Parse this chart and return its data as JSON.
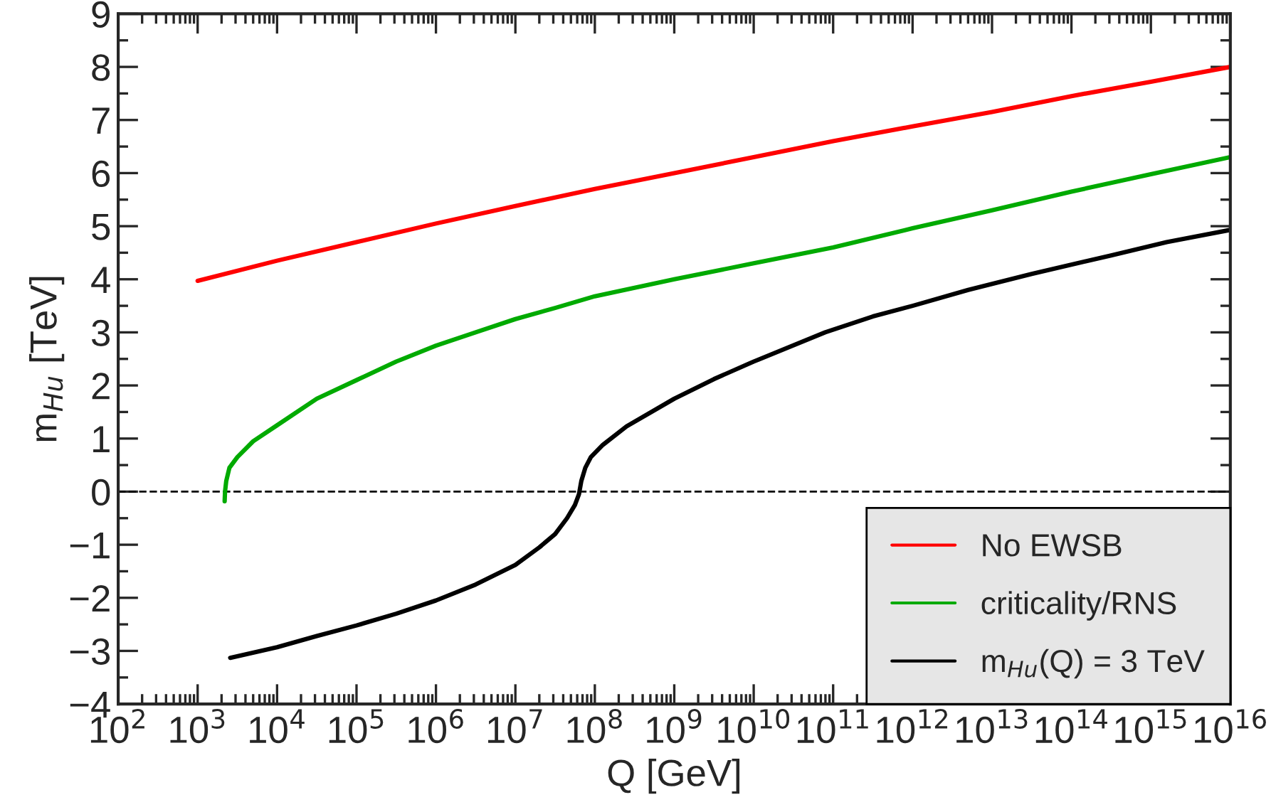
{
  "chart_data": {
    "type": "line",
    "xlabel": "Q [GeV]",
    "ylabel": "m$_{Hu}$ [TeV]",
    "log": "x",
    "xlim": [
      100,
      1e+16
    ],
    "xticks": [
      {
        "value": 100.0,
        "label": "10$^{2}$"
      },
      {
        "value": 1000.0,
        "label": "10$^{3}$"
      },
      {
        "value": 10000.0,
        "label": "10$^{4}$"
      },
      {
        "value": 100000.0,
        "label": "10$^{5}$"
      },
      {
        "value": 1000000.0,
        "label": "10$^{6}$"
      },
      {
        "value": 10000000.0,
        "label": "10$^{7}$"
      },
      {
        "value": 100000000.0,
        "label": "10$^{8}$"
      },
      {
        "value": 1000000000.0,
        "label": "10$^{9}$"
      },
      {
        "value": 10000000000.0,
        "label": "10$^{10}$"
      },
      {
        "value": 100000000000.0,
        "label": "10$^{11}$"
      },
      {
        "value": 1000000000000.0,
        "label": "10$^{12}$"
      },
      {
        "value": 10000000000000.0,
        "label": "10$^{13}$"
      },
      {
        "value": 100000000000000.0,
        "label": "10$^{14}$"
      },
      {
        "value": 1000000000000000.0,
        "label": "10$^{15}$"
      },
      {
        "value": 1e+16,
        "label": "10$^{16}$"
      }
    ],
    "ylim": [
      -4,
      9
    ],
    "yticks": [
      {
        "value": -4,
        "label": "−4"
      },
      {
        "value": -3,
        "label": "−3"
      },
      {
        "value": -2,
        "label": "−2"
      },
      {
        "value": -1,
        "label": "−1"
      },
      0,
      1,
      2,
      3,
      4,
      5,
      6,
      7,
      8,
      9
    ],
    "grid": false,
    "legend": "bottom right",
    "marker": "none",
    "line_style": "solid",
    "ref_lines": [
      {
        "axis": "y",
        "value": 0,
        "color": "#000000",
        "line_style": "dashed"
      }
    ],
    "series": [
      {
        "name": "No EWSB",
        "color": "#ff0000",
        "x": [
          1000.0,
          10000.0,
          100000.0,
          1000000.0,
          10000000.0,
          100000000.0,
          1000000000.0,
          10000000000.0,
          100000000000.0,
          1000000000000.0,
          10000000000000.0,
          100000000000000.0,
          1000000000000000.0,
          1e+16
        ],
        "values": [
          3.97,
          4.35,
          4.7,
          5.05,
          5.38,
          5.7,
          6.0,
          6.3,
          6.6,
          6.88,
          7.15,
          7.45,
          7.72,
          8.0
        ]
      },
      {
        "name": "criticality/RNS",
        "color": "#00aa00",
        "x": [
          2188,
          2213,
          2291,
          2512,
          3162,
          5012,
          10000.0,
          31620,
          100000.0,
          316200,
          1000000.0,
          3162000.0,
          10000000.0,
          31620000.0,
          100000000.0,
          1000000000.0,
          10000000000.0,
          100000000000.0,
          1000000000000.0,
          10000000000000.0,
          100000000000000.0,
          1000000000000000.0,
          1e+16
        ],
        "values": [
          -0.18,
          0.0,
          0.2,
          0.45,
          0.65,
          0.95,
          1.25,
          1.75,
          2.1,
          2.45,
          2.75,
          3.0,
          3.25,
          3.46,
          3.68,
          4.0,
          4.3,
          4.6,
          4.96,
          5.3,
          5.65,
          5.98,
          6.3
        ]
      },
      {
        "name": "m$_{Hu}$(Q) = 3 TeV",
        "color": "#000000",
        "x": [
          2570,
          10000.0,
          31620,
          100000.0,
          316200,
          1000000.0,
          3162000.0,
          10000000.0,
          20000000.0,
          31620000.0,
          44700000.0,
          56200000.0,
          63100000.0,
          67600000.0,
          75900000.0,
          89100000.0,
          126000000.0,
          251000000.0,
          1000000000.0,
          3160000000.0,
          10000000000.0,
          79400000000.0,
          316000000000.0,
          1000000000000.0,
          5010000000000.0,
          31600000000000.0,
          316000000000000.0,
          1580000000000000.0,
          1e+16
        ],
        "values": [
          -3.13,
          -2.93,
          -2.72,
          -2.52,
          -2.3,
          -2.05,
          -1.75,
          -1.38,
          -1.05,
          -0.8,
          -0.5,
          -0.25,
          -0.05,
          0.2,
          0.45,
          0.65,
          0.88,
          1.23,
          1.75,
          2.12,
          2.45,
          3.0,
          3.3,
          3.5,
          3.8,
          4.1,
          4.45,
          4.7,
          4.93
        ]
      }
    ]
  }
}
